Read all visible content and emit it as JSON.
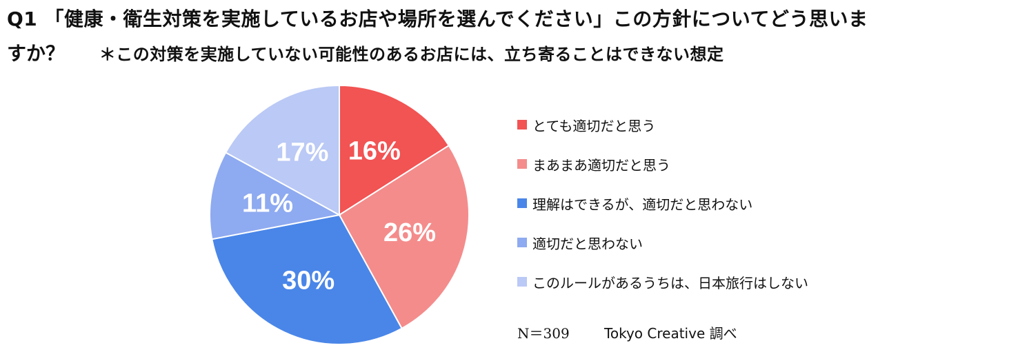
{
  "title": {
    "line1": "Q1 「健康・衛生対策を実施しているお店や場所を選んでください」この方針についてどう思いま",
    "line2": "すか？",
    "note": "＊この対策を実施していない可能性のあるお店には、立ち寄ることはできない想定"
  },
  "chart_data": {
    "type": "pie",
    "categories": [
      "とても適切だと思う",
      "まあまあ適切だと思う",
      "理解はできるが、適切だと思わない",
      "適切だと思わない",
      "このルールがあるうちは、日本旅行はしない"
    ],
    "values": [
      16,
      26,
      30,
      11,
      17
    ],
    "labels": [
      "16%",
      "26%",
      "30%",
      "11%",
      "17%"
    ],
    "colors": [
      "#f25353",
      "#f48c8c",
      "#4a86e8",
      "#8eaaf0",
      "#bac9f5"
    ],
    "start_angle_deg": 0,
    "direction": "clockwise",
    "legend_position": "right"
  },
  "footer": {
    "n": "N＝309",
    "credit": "Tokyo Creative 調べ"
  }
}
